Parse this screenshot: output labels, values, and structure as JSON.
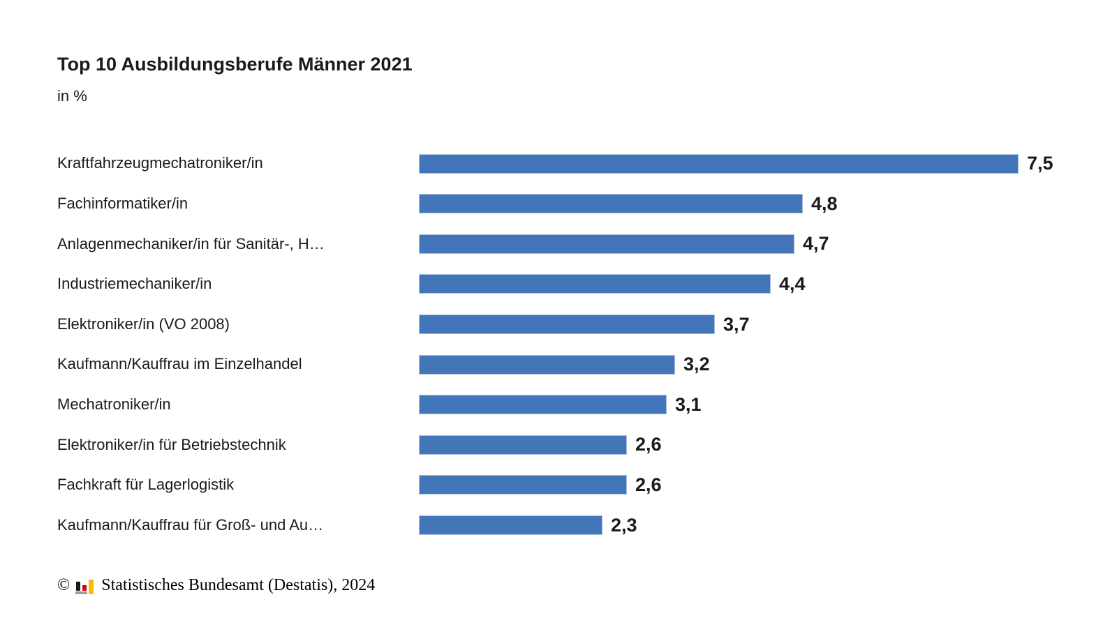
{
  "chart": {
    "title": "Top 10 Ausbildungsberufe Männer 2021",
    "subtitle": "in %",
    "copyright_symbol": "©",
    "source": "Statistisches Bundesamt (Destatis), 2024",
    "colors": {
      "bar": "#4276b8",
      "bar_border": "#a9c0de",
      "text": "#1a1a1a",
      "logo_black": "#1a1a1a",
      "logo_red": "#d0021b",
      "logo_gold": "#f5bd0c",
      "logo_gray": "#9e9e9e"
    }
  },
  "chart_data": {
    "type": "bar",
    "orientation": "horizontal",
    "title": "Top 10 Ausbildungsberufe Männer 2021",
    "subtitle": "in %",
    "xlabel": "",
    "ylabel": "",
    "xlim": [
      0,
      7.5
    ],
    "grid": false,
    "legend": false,
    "value_label_position": "end",
    "decimal_separator": ",",
    "categories": [
      "Kraftfahrzeugmechatroniker/in",
      "Fachinformatiker/in",
      "Anlagenmechaniker/in für Sanitär-, H…",
      "Industriemechaniker/in",
      "Elektroniker/in (VO 2008)",
      "Kaufmann/Kauffrau im Einzelhandel",
      "Mechatroniker/in",
      "Elektroniker/in für Betriebstechnik",
      "Fachkraft für Lagerlogistik",
      "Kaufmann/Kauffrau für Groß- und Au…"
    ],
    "values": [
      7.5,
      4.8,
      4.7,
      4.4,
      3.7,
      3.2,
      3.1,
      2.6,
      2.6,
      2.3
    ],
    "value_labels": [
      "7,5",
      "4,8",
      "4,7",
      "4,4",
      "3,7",
      "3,2",
      "3,1",
      "2,6",
      "2,6",
      "2,3"
    ]
  }
}
